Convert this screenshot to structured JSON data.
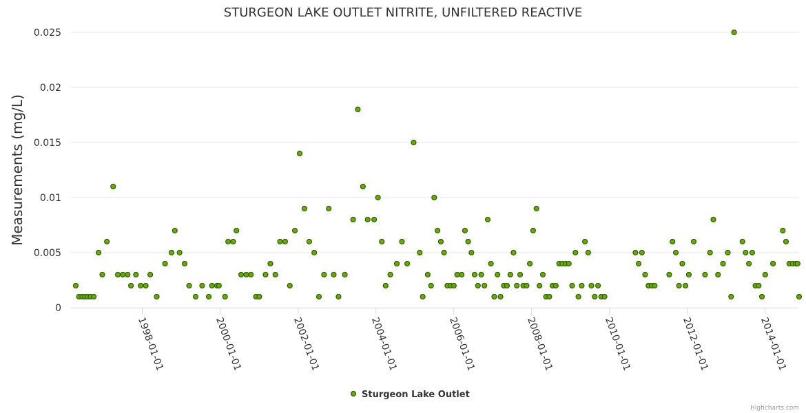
{
  "chart_data": {
    "type": "scatter",
    "title": "STURGEON LAKE OUTLET NITRITE, UNFILTERED REACTIVE",
    "ylabel": "Measurements (mg/L)",
    "xlabel": "",
    "ylim": [
      0,
      0.025
    ],
    "xlim": [
      "1996-03-01",
      "2014-11-15"
    ],
    "yticks": [
      0,
      0.005,
      0.01,
      0.015,
      0.02,
      0.025
    ],
    "ytick_labels": [
      "0",
      "0.005",
      "0.01",
      "0.015",
      "0.02",
      "0.025"
    ],
    "xticks": [
      "1998-01-01",
      "2000-01-01",
      "2002-01-01",
      "2004-01-01",
      "2006-01-01",
      "2008-01-01",
      "2010-01-01",
      "2012-01-01",
      "2014-01-01"
    ],
    "grid": true,
    "legend": "bottom-center",
    "series": [
      {
        "name": "Sturgeon Lake Outlet",
        "color": "#6aa90b",
        "points": [
          [
            "1996-04-15",
            0.002
          ],
          [
            "1996-05-15",
            0.001
          ],
          [
            "1996-06-15",
            0.001
          ],
          [
            "1996-07-10",
            0.001
          ],
          [
            "1996-08-05",
            0.001
          ],
          [
            "1996-09-01",
            0.001
          ],
          [
            "1996-10-01",
            0.001
          ],
          [
            "1996-11-15",
            0.005
          ],
          [
            "1996-12-20",
            0.003
          ],
          [
            "1997-02-01",
            0.006
          ],
          [
            "1997-04-01",
            0.011
          ],
          [
            "1997-05-15",
            0.003
          ],
          [
            "1997-07-01",
            0.003
          ],
          [
            "1997-08-15",
            0.003
          ],
          [
            "1997-09-15",
            0.002
          ],
          [
            "1997-11-01",
            0.003
          ],
          [
            "1997-12-15",
            0.002
          ],
          [
            "1998-02-01",
            0.002
          ],
          [
            "1998-03-15",
            0.003
          ],
          [
            "1998-05-15",
            0.001
          ],
          [
            "1998-08-01",
            0.004
          ],
          [
            "1998-10-01",
            0.005
          ],
          [
            "1998-11-01",
            0.007
          ],
          [
            "1998-12-15",
            0.005
          ],
          [
            "1999-02-01",
            0.004
          ],
          [
            "1999-03-15",
            0.002
          ],
          [
            "1999-05-15",
            0.001
          ],
          [
            "1999-07-15",
            0.002
          ],
          [
            "1999-09-15",
            0.001
          ],
          [
            "1999-10-15",
            0.002
          ],
          [
            "1999-12-01",
            0.002
          ],
          [
            "1999-12-20",
            0.002
          ],
          [
            "2000-02-15",
            0.001
          ],
          [
            "2000-03-15",
            0.006
          ],
          [
            "2000-05-01",
            0.006
          ],
          [
            "2000-06-01",
            0.007
          ],
          [
            "2000-07-15",
            0.003
          ],
          [
            "2000-09-01",
            0.003
          ],
          [
            "2000-10-15",
            0.003
          ],
          [
            "2000-12-01",
            0.001
          ],
          [
            "2001-01-01",
            0.001
          ],
          [
            "2001-03-01",
            0.003
          ],
          [
            "2001-04-15",
            0.004
          ],
          [
            "2001-06-01",
            0.003
          ],
          [
            "2001-07-15",
            0.006
          ],
          [
            "2001-09-01",
            0.006
          ],
          [
            "2001-10-15",
            0.002
          ],
          [
            "2001-12-01",
            0.007
          ],
          [
            "2002-01-15",
            0.014
          ],
          [
            "2002-03-01",
            0.009
          ],
          [
            "2002-04-15",
            0.006
          ],
          [
            "2002-06-01",
            0.005
          ],
          [
            "2002-07-15",
            0.001
          ],
          [
            "2002-09-01",
            0.003
          ],
          [
            "2002-10-15",
            0.009
          ],
          [
            "2002-12-01",
            0.003
          ],
          [
            "2003-01-15",
            0.001
          ],
          [
            "2003-03-15",
            0.003
          ],
          [
            "2003-06-01",
            0.008
          ],
          [
            "2003-07-15",
            0.018
          ],
          [
            "2003-09-01",
            0.011
          ],
          [
            "2003-10-15",
            0.008
          ],
          [
            "2003-12-15",
            0.008
          ],
          [
            "2004-01-20",
            0.01
          ],
          [
            "2004-02-25",
            0.006
          ],
          [
            "2004-04-01",
            0.002
          ],
          [
            "2004-05-15",
            0.003
          ],
          [
            "2004-07-15",
            0.004
          ],
          [
            "2004-09-01",
            0.006
          ],
          [
            "2004-10-20",
            0.004
          ],
          [
            "2004-12-20",
            0.015
          ],
          [
            "2005-02-15",
            0.005
          ],
          [
            "2005-03-15",
            0.001
          ],
          [
            "2005-05-01",
            0.003
          ],
          [
            "2005-06-01",
            0.002
          ],
          [
            "2005-07-01",
            0.01
          ],
          [
            "2005-08-01",
            0.007
          ],
          [
            "2005-09-01",
            0.006
          ],
          [
            "2005-10-01",
            0.005
          ],
          [
            "2005-11-01",
            0.002
          ],
          [
            "2005-12-01",
            0.002
          ],
          [
            "2006-01-01",
            0.002
          ],
          [
            "2006-02-01",
            0.003
          ],
          [
            "2006-03-15",
            0.003
          ],
          [
            "2006-04-15",
            0.007
          ],
          [
            "2006-05-15",
            0.006
          ],
          [
            "2006-06-15",
            0.005
          ],
          [
            "2006-07-15",
            0.003
          ],
          [
            "2006-08-15",
            0.002
          ],
          [
            "2006-09-15",
            0.003
          ],
          [
            "2006-10-15",
            0.002
          ],
          [
            "2006-11-15",
            0.008
          ],
          [
            "2006-12-15",
            0.004
          ],
          [
            "2007-01-15",
            0.001
          ],
          [
            "2007-02-15",
            0.003
          ],
          [
            "2007-03-15",
            0.001
          ],
          [
            "2007-04-15",
            0.002
          ],
          [
            "2007-05-15",
            0.002
          ],
          [
            "2007-06-15",
            0.003
          ],
          [
            "2007-07-15",
            0.005
          ],
          [
            "2007-08-15",
            0.002
          ],
          [
            "2007-09-15",
            0.003
          ],
          [
            "2007-10-15",
            0.002
          ],
          [
            "2007-11-15",
            0.002
          ],
          [
            "2007-12-15",
            0.004
          ],
          [
            "2008-01-15",
            0.007
          ],
          [
            "2008-02-15",
            0.009
          ],
          [
            "2008-03-15",
            0.002
          ],
          [
            "2008-04-15",
            0.003
          ],
          [
            "2008-05-15",
            0.001
          ],
          [
            "2008-06-15",
            0.001
          ],
          [
            "2008-07-15",
            0.002
          ],
          [
            "2008-08-15",
            0.002
          ],
          [
            "2008-09-15",
            0.004
          ],
          [
            "2008-10-15",
            0.004
          ],
          [
            "2008-11-15",
            0.004
          ],
          [
            "2008-12-15",
            0.004
          ],
          [
            "2009-01-15",
            0.002
          ],
          [
            "2009-02-15",
            0.005
          ],
          [
            "2009-03-15",
            0.001
          ],
          [
            "2009-04-15",
            0.002
          ],
          [
            "2009-05-15",
            0.006
          ],
          [
            "2009-06-15",
            0.005
          ],
          [
            "2009-07-15",
            0.002
          ],
          [
            "2009-08-15",
            0.001
          ],
          [
            "2009-09-15",
            0.002
          ],
          [
            "2009-10-15",
            0.001
          ],
          [
            "2009-11-15",
            0.001
          ],
          [
            "2010-09-01",
            0.005
          ],
          [
            "2010-10-01",
            0.004
          ],
          [
            "2010-11-01",
            0.005
          ],
          [
            "2010-12-01",
            0.003
          ],
          [
            "2011-01-01",
            0.002
          ],
          [
            "2011-02-01",
            0.002
          ],
          [
            "2011-03-01",
            0.002
          ],
          [
            "2011-07-15",
            0.003
          ],
          [
            "2011-08-15",
            0.006
          ],
          [
            "2011-09-15",
            0.005
          ],
          [
            "2011-10-15",
            0.002
          ],
          [
            "2011-11-15",
            0.004
          ],
          [
            "2011-12-15",
            0.002
          ],
          [
            "2012-01-15",
            0.003
          ],
          [
            "2012-03-01",
            0.006
          ],
          [
            "2012-06-15",
            0.003
          ],
          [
            "2012-08-01",
            0.005
          ],
          [
            "2012-09-01",
            0.008
          ],
          [
            "2012-10-15",
            0.003
          ],
          [
            "2012-12-01",
            0.004
          ],
          [
            "2013-01-15",
            0.005
          ],
          [
            "2013-02-15",
            0.001
          ],
          [
            "2013-03-15",
            0.025
          ],
          [
            "2013-06-01",
            0.006
          ],
          [
            "2013-07-01",
            0.005
          ],
          [
            "2013-08-01",
            0.004
          ],
          [
            "2013-09-01",
            0.005
          ],
          [
            "2013-10-01",
            0.002
          ],
          [
            "2013-11-01",
            0.002
          ],
          [
            "2013-12-01",
            0.001
          ],
          [
            "2014-01-01",
            0.003
          ],
          [
            "2014-03-15",
            0.004
          ],
          [
            "2014-06-15",
            0.007
          ],
          [
            "2014-07-15",
            0.006
          ],
          [
            "2014-08-15",
            0.004
          ],
          [
            "2014-09-15",
            0.004
          ],
          [
            "2014-10-15",
            0.004
          ],
          [
            "2014-11-01",
            0.004
          ],
          [
            "2014-11-15",
            0.001
          ]
        ]
      }
    ]
  },
  "credit": "Highcharts.com"
}
